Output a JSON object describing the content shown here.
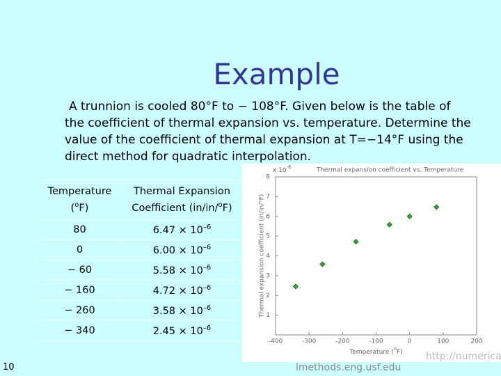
{
  "title": "Example",
  "body_lines": [
    "A trunnion is cooled 80°F to − 108°F. Given below is the table of",
    "the coefficient of thermal expansion vs. temperature. Determine the",
    "value of the coefficient of thermal expansion at T=−14°F using the",
    "direct method for quadratic interpolation."
  ],
  "table": {
    "header": [
      {
        "text": "Temperature",
        "pre": "(",
        "sup": "o",
        "after": "F)"
      },
      {
        "text": "Thermal Expansion",
        "pre": "Coefficient (in/in/",
        "sup": "o",
        "after": "F)"
      }
    ],
    "rows": [
      [
        "80",
        {
          "text": "6.47 × 10",
          "sup": "–6"
        }
      ],
      [
        "0",
        {
          "text": "6.00 × 10",
          "sup": "–6"
        }
      ],
      [
        "− 60",
        {
          "text": "5.58 × 10",
          "sup": "–6"
        }
      ],
      [
        "− 160",
        {
          "text": "4.72 × 10",
          "sup": "–6"
        }
      ],
      [
        "− 260",
        {
          "text": "3.58 × 10",
          "sup": "–6"
        }
      ],
      [
        "− 340",
        {
          "text": "2.45 × 10",
          "sup": "–6"
        }
      ]
    ]
  },
  "chart_data": {
    "type": "scatter",
    "title": "Thermal expansion coefficient vs. Temperature",
    "x_label": {
      "text": "Temperature (",
      "sup": "o",
      "after": "F)"
    },
    "y_label": "Thermal expansion coefficient (in/in/°F)",
    "y_multiplier": {
      "text": "x 10",
      "sup": "-6"
    },
    "x": [
      80,
      0,
      -60,
      -160,
      -260,
      -340
    ],
    "values": [
      6.47,
      6.0,
      5.58,
      4.72,
      3.58,
      2.45
    ],
    "color": "#33aa33",
    "xlim": [
      -400,
      200
    ],
    "xticks": [
      -400,
      -300,
      -200,
      -100,
      0,
      100,
      200
    ],
    "ylim": [
      0,
      8
    ],
    "yticks": [
      1,
      2,
      3,
      4,
      5,
      6,
      7,
      8
    ]
  },
  "page_number": "10",
  "footer_url_start": "http://numerica",
  "footer_url_end": "lmethods.eng.usf.edu"
}
